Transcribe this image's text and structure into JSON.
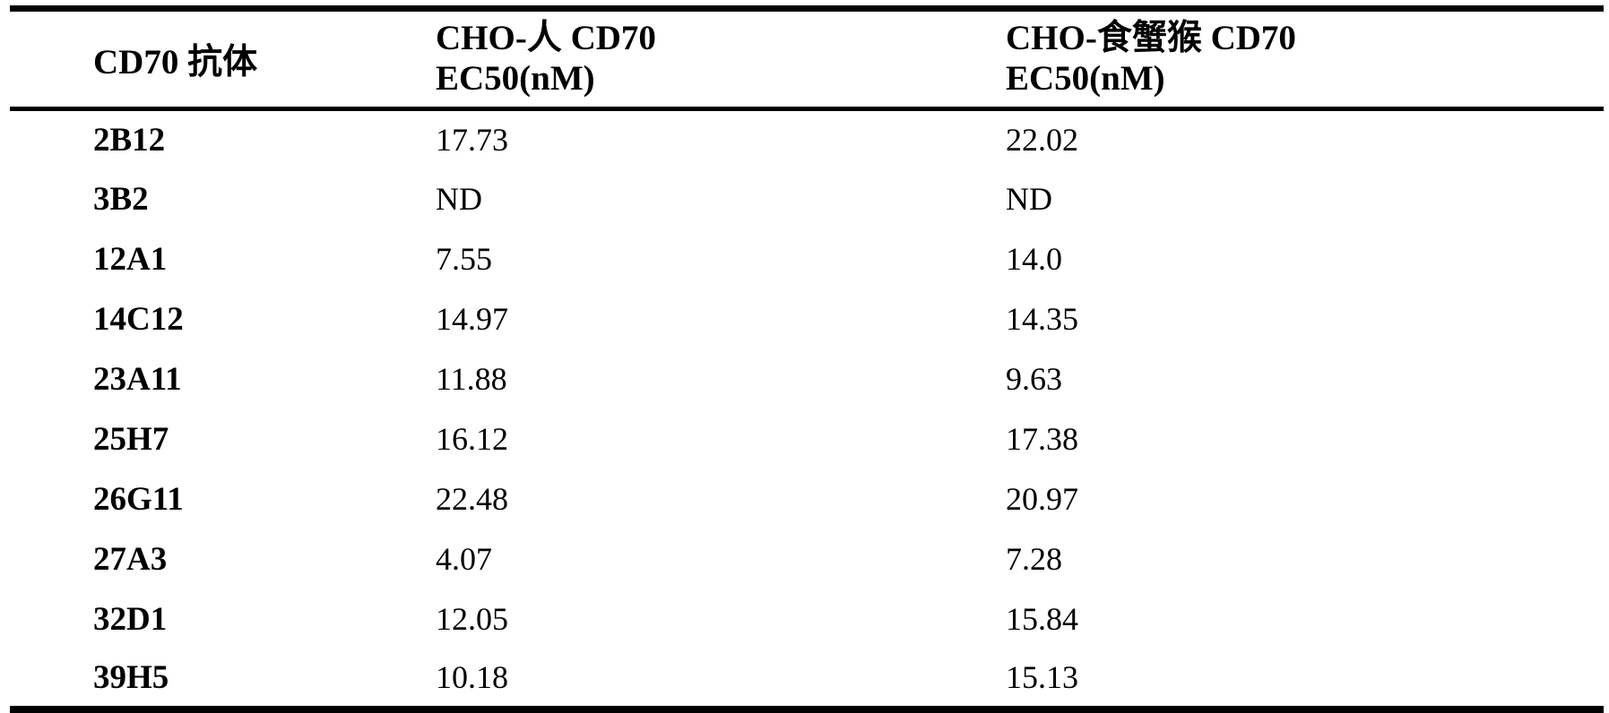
{
  "page": {
    "background_color": "#ffffff",
    "text_color": "#000000"
  },
  "table": {
    "header": {
      "antibody_col": "CD70 抗体",
      "human_col_line1": "CHO-人 CD70",
      "human_col_line2": "EC50(nM)",
      "cyno_col_line1": "CHO-食蟹猴 CD70",
      "cyno_col_line2": "EC50(nM)"
    },
    "rows": [
      {
        "antibody": "2B12",
        "human_ec50": "17.73",
        "cyno_ec50": "22.02"
      },
      {
        "antibody": "3B2",
        "human_ec50": "ND",
        "cyno_ec50": "ND"
      },
      {
        "antibody": "12A1",
        "human_ec50": "7.55",
        "cyno_ec50": "14.0"
      },
      {
        "antibody": "14C12",
        "human_ec50": "14.97",
        "cyno_ec50": "14.35"
      },
      {
        "antibody": "23A11",
        "human_ec50": "11.88",
        "cyno_ec50": "9.63"
      },
      {
        "antibody": "25H7",
        "human_ec50": "16.12",
        "cyno_ec50": "17.38"
      },
      {
        "antibody": "26G11",
        "human_ec50": "22.48",
        "cyno_ec50": "20.97"
      },
      {
        "antibody": "27A3",
        "human_ec50": "4.07",
        "cyno_ec50": "7.28"
      },
      {
        "antibody": "32D1",
        "human_ec50": "12.05",
        "cyno_ec50": "15.84"
      },
      {
        "antibody": "39H5",
        "human_ec50": "10.18",
        "cyno_ec50": "15.13"
      }
    ]
  }
}
